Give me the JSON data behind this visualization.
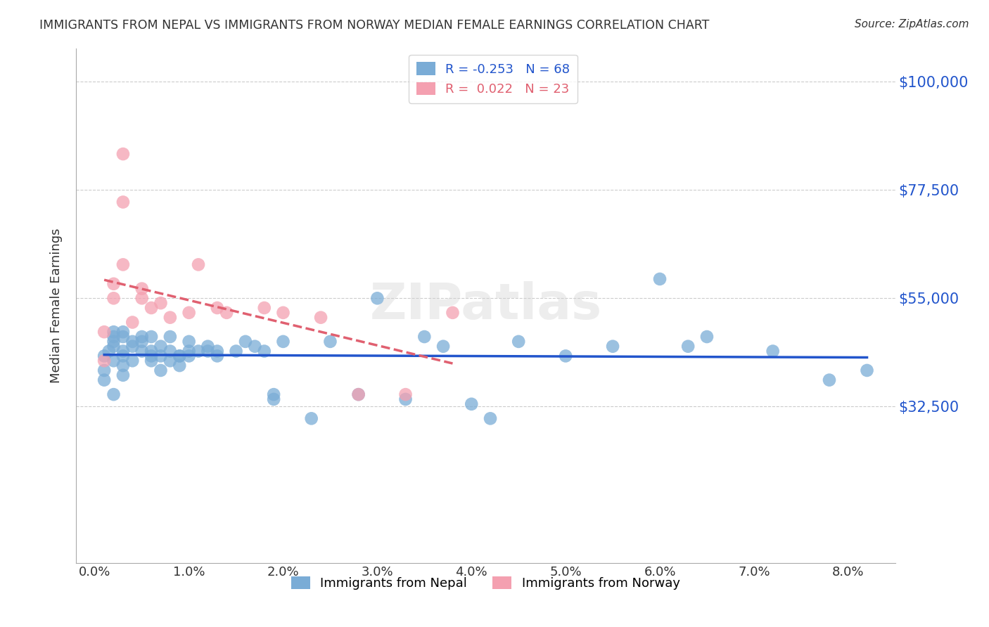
{
  "title": "IMMIGRANTS FROM NEPAL VS IMMIGRANTS FROM NORWAY MEDIAN FEMALE EARNINGS CORRELATION CHART",
  "source": "Source: ZipAtlas.com",
  "ylabel": "Median Female Earnings",
  "xlabel_ticks": [
    "0.0%",
    "1.0%",
    "2.0%",
    "3.0%",
    "4.0%",
    "5.0%",
    "6.0%",
    "7.0%",
    "8.0%"
  ],
  "xlabel_vals": [
    0.0,
    0.01,
    0.02,
    0.03,
    0.04,
    0.05,
    0.06,
    0.07,
    0.08
  ],
  "ylim": [
    0,
    107000
  ],
  "xlim": [
    -0.002,
    0.085
  ],
  "nepal_color": "#7aacd6",
  "norway_color": "#f4a0b0",
  "nepal_line_color": "#2255cc",
  "norway_line_color": "#e06070",
  "nepal_R": -0.253,
  "nepal_N": 68,
  "norway_R": 0.022,
  "norway_N": 23,
  "watermark": "ZIPatlas",
  "nepal_x": [
    0.001,
    0.001,
    0.001,
    0.0015,
    0.002,
    0.002,
    0.002,
    0.002,
    0.002,
    0.002,
    0.003,
    0.003,
    0.003,
    0.003,
    0.003,
    0.003,
    0.004,
    0.004,
    0.004,
    0.005,
    0.005,
    0.005,
    0.006,
    0.006,
    0.006,
    0.006,
    0.007,
    0.007,
    0.007,
    0.008,
    0.008,
    0.008,
    0.009,
    0.009,
    0.009,
    0.01,
    0.01,
    0.01,
    0.011,
    0.012,
    0.012,
    0.013,
    0.013,
    0.015,
    0.016,
    0.017,
    0.018,
    0.019,
    0.019,
    0.02,
    0.023,
    0.025,
    0.028,
    0.03,
    0.033,
    0.035,
    0.037,
    0.04,
    0.042,
    0.045,
    0.05,
    0.055,
    0.06,
    0.063,
    0.065,
    0.072,
    0.078,
    0.082
  ],
  "nepal_y": [
    43000,
    40000,
    38000,
    44000,
    45000,
    42000,
    48000,
    47000,
    46000,
    35000,
    47000,
    48000,
    43000,
    41000,
    44000,
    39000,
    46000,
    45000,
    42000,
    47000,
    44000,
    46000,
    43000,
    47000,
    44000,
    42000,
    45000,
    43000,
    40000,
    47000,
    44000,
    42000,
    43000,
    41000,
    43000,
    46000,
    44000,
    43000,
    44000,
    45000,
    44000,
    44000,
    43000,
    44000,
    46000,
    45000,
    44000,
    35000,
    34000,
    46000,
    30000,
    46000,
    35000,
    55000,
    34000,
    47000,
    45000,
    33000,
    30000,
    46000,
    43000,
    45000,
    59000,
    45000,
    47000,
    44000,
    38000,
    40000
  ],
  "norway_x": [
    0.001,
    0.001,
    0.002,
    0.002,
    0.003,
    0.003,
    0.003,
    0.004,
    0.005,
    0.005,
    0.006,
    0.007,
    0.008,
    0.01,
    0.011,
    0.013,
    0.014,
    0.018,
    0.02,
    0.024,
    0.028,
    0.033,
    0.038
  ],
  "norway_y": [
    48000,
    42000,
    55000,
    58000,
    62000,
    75000,
    85000,
    50000,
    55000,
    57000,
    53000,
    54000,
    51000,
    52000,
    62000,
    53000,
    52000,
    53000,
    52000,
    51000,
    35000,
    35000,
    52000
  ],
  "background_color": "#ffffff",
  "grid_color": "#cccccc",
  "ytick_color": "#2255cc",
  "title_color": "#333333",
  "ytick_vals": [
    32500,
    55000,
    77500,
    100000
  ],
  "ytick_labels": [
    "$32,500",
    "$55,000",
    "$77,500",
    "$100,000"
  ]
}
